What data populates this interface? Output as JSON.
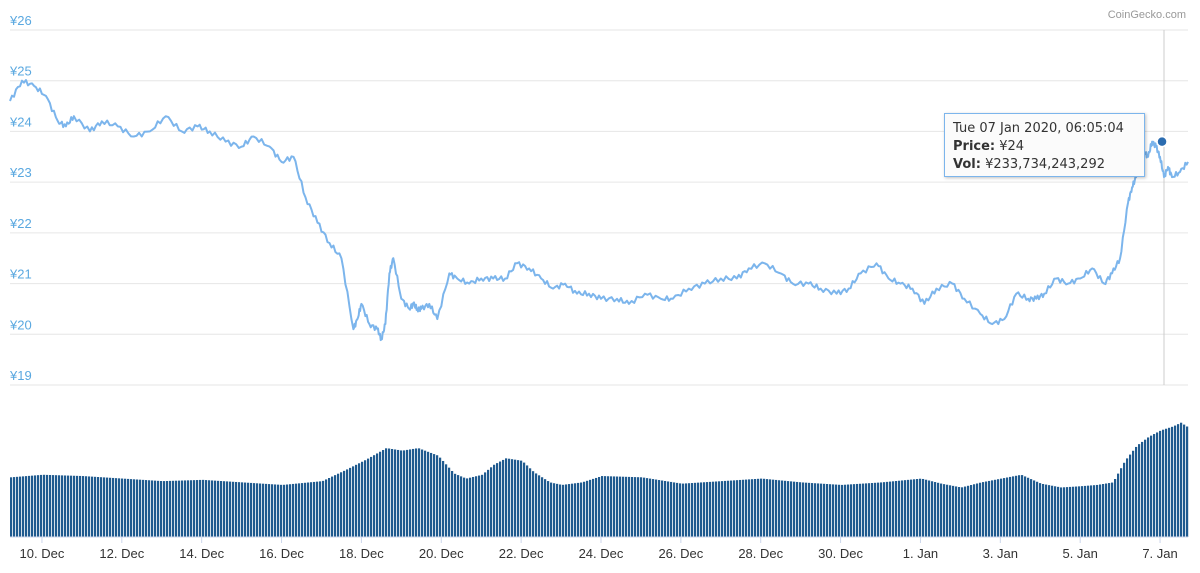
{
  "chart_data": {
    "type": "line",
    "credit": "CoinGecko.com",
    "y_ticks": [
      "¥19",
      "¥20",
      "¥21",
      "¥22",
      "¥23",
      "¥24",
      "¥25",
      "¥26"
    ],
    "ylim": [
      19,
      26
    ],
    "x_ticks": [
      "10. Dec",
      "12. Dec",
      "14. Dec",
      "16. Dec",
      "18. Dec",
      "20. Dec",
      "22. Dec",
      "24. Dec",
      "26. Dec",
      "28. Dec",
      "30. Dec",
      "1. Jan",
      "3. Jan",
      "5. Jan",
      "7. Jan"
    ],
    "x_range_days": [
      9.2,
      38.7
    ],
    "price_series": {
      "x_days": [
        9.2,
        9.5,
        9.8,
        10.1,
        10.4,
        10.6,
        10.8,
        11.2,
        11.5,
        11.9,
        12.3,
        12.7,
        13.1,
        13.5,
        13.9,
        14.2,
        14.6,
        15.0,
        15.3,
        15.7,
        16.0,
        16.3,
        16.6,
        16.9,
        17.2,
        17.5,
        17.8,
        17.9,
        18.0,
        18.2,
        18.4,
        18.5,
        18.6,
        18.7,
        18.8,
        19.0,
        19.2,
        19.3,
        19.4,
        19.5,
        19.7,
        19.9,
        20.2,
        20.4,
        20.7,
        21.0,
        21.3,
        21.6,
        21.9,
        22.2,
        22.5,
        22.8,
        23.1,
        23.4,
        23.7,
        24.0,
        24.4,
        24.7,
        25.1,
        25.5,
        25.8,
        26.2,
        26.6,
        27.0,
        27.4,
        27.7,
        28.1,
        28.5,
        28.8,
        29.2,
        29.5,
        29.9,
        30.2,
        30.5,
        30.9,
        31.2,
        31.5,
        31.8,
        32.1,
        32.4,
        32.8,
        33.1,
        33.5,
        33.8,
        34.1,
        34.4,
        34.7,
        34.9,
        35.1,
        35.4,
        35.7,
        36.0,
        36.3,
        36.6,
        36.8,
        37.0,
        37.2,
        37.3,
        37.4,
        37.5,
        37.6,
        37.7,
        37.8,
        37.9,
        38.0,
        38.1,
        38.2,
        38.3,
        38.5,
        38.7
      ],
      "y": [
        24.6,
        25.0,
        24.9,
        24.7,
        24.2,
        24.1,
        24.3,
        24.0,
        24.2,
        24.1,
        23.9,
        24.0,
        24.3,
        24.0,
        24.1,
        24.0,
        23.8,
        23.7,
        23.9,
        23.7,
        23.4,
        23.5,
        22.7,
        22.2,
        21.8,
        21.5,
        20.1,
        20.3,
        20.6,
        20.2,
        20.1,
        19.9,
        20.2,
        21.2,
        21.5,
        20.7,
        20.5,
        20.6,
        20.5,
        20.5,
        20.6,
        20.3,
        21.2,
        21.1,
        21.0,
        21.1,
        21.1,
        21.1,
        21.4,
        21.3,
        21.1,
        20.9,
        21.0,
        20.8,
        20.8,
        20.7,
        20.7,
        20.6,
        20.8,
        20.7,
        20.7,
        20.9,
        21.0,
        21.1,
        21.1,
        21.3,
        21.4,
        21.2,
        21.0,
        21.0,
        20.9,
        20.8,
        20.9,
        21.2,
        21.4,
        21.1,
        21.0,
        20.9,
        20.6,
        20.9,
        21.0,
        20.7,
        20.4,
        20.2,
        20.3,
        20.8,
        20.7,
        20.7,
        20.8,
        21.1,
        21.0,
        21.1,
        21.3,
        21.0,
        21.2,
        21.5,
        22.6,
        22.9,
        23.1,
        23.4,
        23.6,
        23.5,
        23.8,
        23.7,
        23.5,
        23.1,
        23.3,
        23.1,
        23.2,
        23.4
      ]
    },
    "volume_series": {
      "x_days": [
        9.2,
        10.0,
        11.0,
        12.0,
        13.0,
        14.0,
        15.0,
        16.0,
        17.0,
        17.6,
        18.1,
        18.6,
        19.0,
        19.4,
        19.9,
        20.3,
        20.6,
        21.0,
        21.3,
        21.6,
        22.0,
        22.3,
        22.7,
        23.0,
        23.5,
        24.0,
        25.0,
        26.0,
        27.0,
        28.0,
        29.0,
        30.0,
        31.0,
        32.0,
        32.5,
        33.0,
        33.5,
        34.0,
        34.5,
        35.0,
        35.5,
        36.0,
        36.4,
        36.8,
        37.1,
        37.4,
        37.7,
        38.0,
        38.3,
        38.5,
        38.7
      ],
      "level": [
        0.47,
        0.49,
        0.48,
        0.46,
        0.44,
        0.45,
        0.43,
        0.41,
        0.44,
        0.53,
        0.61,
        0.7,
        0.68,
        0.7,
        0.64,
        0.5,
        0.46,
        0.49,
        0.57,
        0.62,
        0.6,
        0.51,
        0.43,
        0.41,
        0.43,
        0.48,
        0.47,
        0.42,
        0.44,
        0.46,
        0.43,
        0.41,
        0.43,
        0.46,
        0.42,
        0.39,
        0.43,
        0.46,
        0.49,
        0.42,
        0.39,
        0.4,
        0.41,
        0.43,
        0.6,
        0.72,
        0.79,
        0.84,
        0.87,
        0.9,
        0.86
      ]
    }
  },
  "tooltip": {
    "date": "Tue 07 Jan 2020, 06:05:04",
    "price_label": "Price:",
    "price_value": "¥24",
    "vol_label": "Vol:",
    "vol_value": "¥233,734,243,292"
  },
  "colors": {
    "line": "#7cb5ec",
    "volume": "#1f5a8f",
    "grid": "#e6e6e6",
    "marker": "#2b6cb0"
  }
}
